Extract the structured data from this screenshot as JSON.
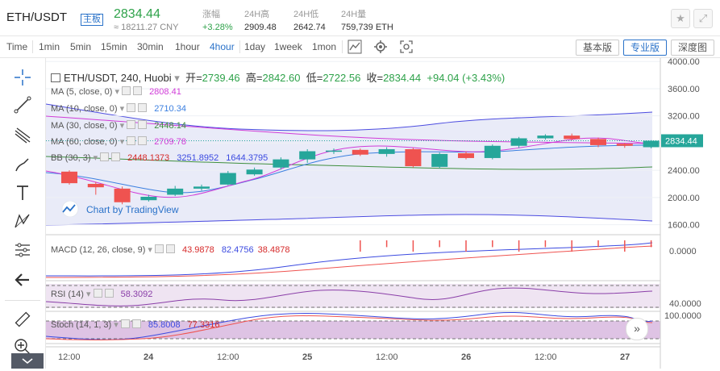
{
  "header": {
    "pair": "ETH/USDT",
    "board": "主板",
    "price": "2834.44",
    "cny": "≈ 18211.27 CNY",
    "change_label": "涨幅",
    "change_value": "+3.28%",
    "high_label": "24H高",
    "high_value": "2909.48",
    "low_label": "24H低",
    "low_value": "2642.74",
    "vol_label": "24H量",
    "vol_value": "759,739 ETH",
    "star_icon": "star-icon",
    "fullscreen_icon": "fullscreen-icon"
  },
  "toolbar": {
    "timeframes": [
      "Time",
      "1min",
      "5min",
      "15min",
      "30min",
      "1hour",
      "4hour",
      "1day",
      "1week",
      "1mon"
    ],
    "active": "4hour",
    "views": [
      "基本版",
      "专业版",
      "深度图"
    ],
    "active_view": "专业版"
  },
  "chart": {
    "title": "ETH/USDT, 240, Huobi",
    "open_label": "开=",
    "open": "2739.46",
    "high_label": "高=",
    "high": "2842.60",
    "low_label": "低=",
    "low": "2722.56",
    "close_label": "收=",
    "close": "2834.44",
    "change": "+94.04 (+3.43%)",
    "ma5_label": "MA (5, close, 0)",
    "ma5": "2808.41",
    "ma10_label": "MA (10, close, 0)",
    "ma10": "2710.34",
    "ma30_label": "MA (30, close, 0)",
    "ma30": "2448.14",
    "ma60_label": "MA (60, close, 0)",
    "ma60": "2709.78",
    "bb_label": "BB (30, 3)",
    "bb1": "2448.1373",
    "bb2": "3251.8952",
    "bb3": "1644.3795",
    "macd_label": "MACD (12, 26, close, 9)",
    "macd1": "43.9878",
    "macd2": "82.4756",
    "macd3": "38.4878",
    "rsi_label": "RSI (14)",
    "rsi": "58.3092",
    "stoch_label": "Stoch (14, 1, 3)",
    "stoch1": "85.8008",
    "stoch2": "77.3316",
    "watermark": "Chart by TradingView",
    "last_price_tag": "2834.44",
    "price_axis": [
      "4000.00",
      "3600.00",
      "3200.00",
      "2800.00",
      "2400.00",
      "2000.00",
      "1600.00"
    ],
    "macd_axis": [
      "0.0000"
    ],
    "rsi_axis": [
      "40.0000"
    ],
    "stoch_axis": [
      "100.0000"
    ],
    "time_axis": [
      "12:00",
      "24",
      "12:00",
      "25",
      "12:00",
      "26",
      "12:00",
      "27"
    ]
  },
  "chart_data": {
    "type": "candlestick",
    "title": "ETH/USDT, 240, Huobi",
    "candles": [
      {
        "o": 2380,
        "c": 2210,
        "h": 2400,
        "l": 2190
      },
      {
        "o": 2200,
        "c": 2150,
        "h": 2230,
        "l": 2040
      },
      {
        "o": 2130,
        "c": 1930,
        "h": 2160,
        "l": 1900
      },
      {
        "o": 1960,
        "c": 2010,
        "h": 2040,
        "l": 1940
      },
      {
        "o": 2040,
        "c": 2130,
        "h": 2170,
        "l": 2020
      },
      {
        "o": 2130,
        "c": 2160,
        "h": 2190,
        "l": 2100
      },
      {
        "o": 2190,
        "c": 2360,
        "h": 2390,
        "l": 2180
      },
      {
        "o": 2340,
        "c": 2410,
        "h": 2440,
        "l": 2320
      },
      {
        "o": 2440,
        "c": 2560,
        "h": 2590,
        "l": 2410
      },
      {
        "o": 2560,
        "c": 2680,
        "h": 2710,
        "l": 2510
      },
      {
        "o": 2690,
        "c": 2690,
        "h": 2720,
        "l": 2640
      },
      {
        "o": 2700,
        "c": 2630,
        "h": 2720,
        "l": 2610
      },
      {
        "o": 2640,
        "c": 2710,
        "h": 2740,
        "l": 2600
      },
      {
        "o": 2710,
        "c": 2460,
        "h": 2730,
        "l": 2440
      },
      {
        "o": 2450,
        "c": 2640,
        "h": 2660,
        "l": 2430
      },
      {
        "o": 2650,
        "c": 2580,
        "h": 2680,
        "l": 2560
      },
      {
        "o": 2580,
        "c": 2760,
        "h": 2780,
        "l": 2560
      },
      {
        "o": 2760,
        "c": 2870,
        "h": 2890,
        "l": 2730
      },
      {
        "o": 2870,
        "c": 2910,
        "h": 2930,
        "l": 2850
      },
      {
        "o": 2910,
        "c": 2860,
        "h": 2940,
        "l": 2840
      },
      {
        "o": 2860,
        "c": 2770,
        "h": 2880,
        "l": 2740
      },
      {
        "o": 2790,
        "c": 2760,
        "h": 2800,
        "l": 2730
      },
      {
        "o": 2739.46,
        "c": 2834.44,
        "h": 2842.6,
        "l": 2722.56
      }
    ],
    "ylim": [
      1500,
      4050
    ],
    "colors": {
      "up": "#26a69a",
      "down": "#ef5350",
      "ma5": "#d03cd8",
      "ma10": "#3b7fe0",
      "ma30": "#3f8f3f",
      "bb": "#4c4ce0"
    }
  }
}
